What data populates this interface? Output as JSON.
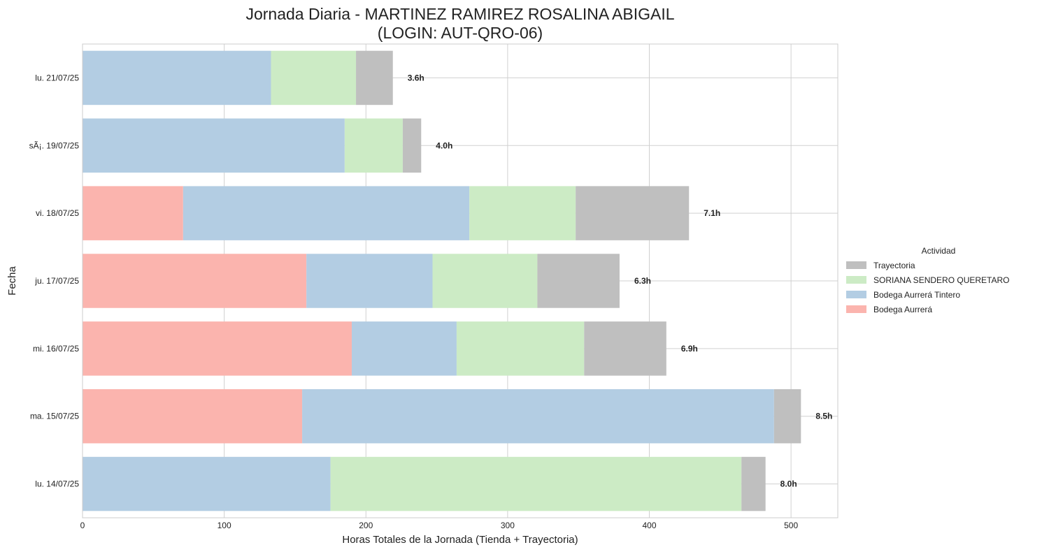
{
  "chart_data": {
    "type": "bar",
    "orientation": "horizontal",
    "stacked": true,
    "title": "Jornada Diaria - MARTINEZ RAMIREZ ROSALINA ABIGAIL",
    "subtitle": "(LOGIN: AUT-QRO-06)",
    "xlabel": "Horas Totales de la Jornada (Tienda + Trayectoria)",
    "ylabel": "Fecha",
    "xlim": [
      0,
      533
    ],
    "xticks": [
      0,
      100,
      200,
      300,
      400,
      500
    ],
    "grid": true,
    "legend_title": "Actividad",
    "legend_placement": "center-right",
    "categories": [
      "lu. 21/07/25",
      "sÃ¡. 19/07/25",
      "vi. 18/07/25",
      "ju. 17/07/25",
      "mi. 16/07/25",
      "ma. 15/07/25",
      "lu. 14/07/25"
    ],
    "totals": [
      "3.6h",
      "4.0h",
      "7.1h",
      "6.3h",
      "6.9h",
      "8.5h",
      "8.0h"
    ],
    "series": [
      {
        "name": "Bodega Aurrerá",
        "color": "#fbb4ae",
        "values": [
          0,
          0,
          71,
          158,
          190,
          155,
          0
        ]
      },
      {
        "name": "Bodega Aurrerá Tintero",
        "color": "#b3cde3",
        "values": [
          133,
          185,
          202,
          89,
          74,
          333,
          175
        ]
      },
      {
        "name": "SORIANA SENDERO QUERETARO",
        "color": "#ccebc5",
        "values": [
          60,
          41,
          75,
          74,
          90,
          0,
          290
        ]
      },
      {
        "name": "Trayectoria",
        "color": "#bfbfbf",
        "values": [
          26,
          13,
          80,
          58,
          58,
          19,
          17
        ]
      }
    ],
    "legend_order": [
      "Trayectoria",
      "SORIANA SENDERO QUERETARO",
      "Bodega Aurrerá Tintero",
      "Bodega Aurrerá"
    ]
  }
}
